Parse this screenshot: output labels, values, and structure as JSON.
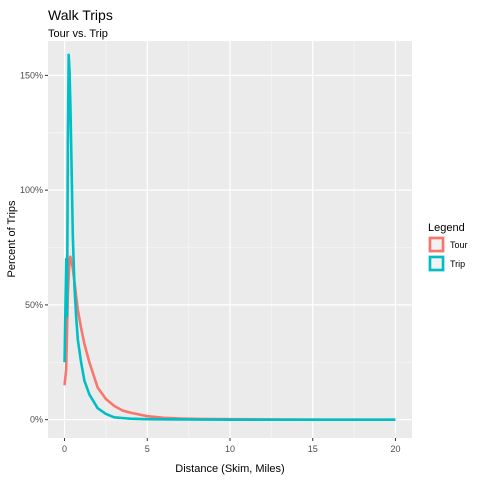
{
  "chart_data": {
    "type": "line",
    "title": "Walk Trips",
    "subtitle": "Tour vs. Trip",
    "xlabel": "Distance (Skim, Miles)",
    "ylabel": "Percent of Trips",
    "xlim": [
      -1,
      21
    ],
    "ylim": [
      -0.08,
      1.65
    ],
    "x_ticks": [
      0,
      5,
      10,
      15,
      20
    ],
    "x_tick_labels": [
      "0",
      "5",
      "10",
      "15",
      "20"
    ],
    "y_ticks": [
      0,
      0.5,
      1.0,
      1.5
    ],
    "y_tick_labels": [
      "0%",
      "50%",
      "100%",
      "150%"
    ],
    "grid": true,
    "legend": {
      "title": "Legend",
      "position": "right"
    },
    "series": [
      {
        "name": "Tour",
        "color": "#F8766D",
        "x": [
          0,
          0.1,
          0.2,
          0.3,
          0.35,
          0.4,
          0.5,
          0.6,
          0.8,
          1.0,
          1.2,
          1.5,
          2.0,
          2.5,
          3.0,
          3.5,
          4.0,
          5.0,
          6.0,
          7.0,
          8.0,
          10.0,
          12.0,
          15.0,
          20.0
        ],
        "y": [
          0.15,
          0.22,
          0.55,
          0.7,
          0.71,
          0.69,
          0.66,
          0.6,
          0.48,
          0.4,
          0.33,
          0.25,
          0.14,
          0.09,
          0.06,
          0.04,
          0.03,
          0.015,
          0.008,
          0.005,
          0.003,
          0.002,
          0.001,
          0.0,
          0.0
        ]
      },
      {
        "name": "Trip",
        "color": "#00BFC4",
        "x": [
          0,
          0.1,
          0.15,
          0.2,
          0.25,
          0.3,
          0.35,
          0.4,
          0.45,
          0.5,
          0.6,
          0.7,
          0.8,
          1.0,
          1.2,
          1.5,
          2.0,
          2.5,
          3.0,
          4.0,
          5.0,
          7.0,
          10.0,
          15.0,
          20.0
        ],
        "y": [
          0.25,
          0.7,
          0.45,
          1.2,
          1.59,
          1.52,
          1.38,
          1.2,
          1.0,
          0.8,
          0.58,
          0.45,
          0.35,
          0.25,
          0.17,
          0.11,
          0.05,
          0.025,
          0.01,
          0.004,
          0.002,
          0.001,
          0.0,
          0.0,
          0.0
        ]
      }
    ]
  }
}
